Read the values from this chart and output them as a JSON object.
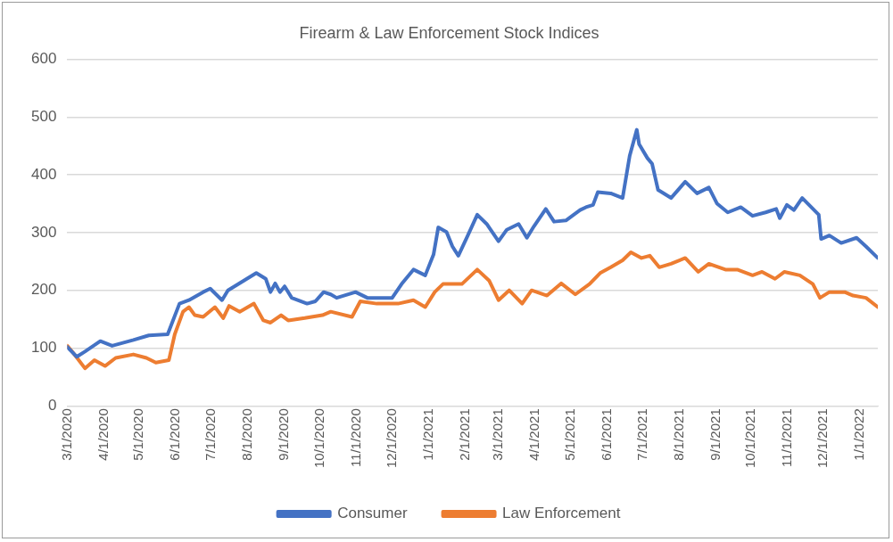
{
  "chart_data": {
    "type": "line",
    "title": "Firearm & Law Enforcement Stock Indices",
    "xlim": [
      "2020-03-01",
      "2022-01-16"
    ],
    "xticks": [
      {
        "value": "2020-03-01",
        "label": "3/1/2020"
      },
      {
        "value": "2020-04-01",
        "label": "4/1/2020"
      },
      {
        "value": "2020-05-01",
        "label": "5/1/2020"
      },
      {
        "value": "2020-06-01",
        "label": "6/1/2020"
      },
      {
        "value": "2020-07-01",
        "label": "7/1/2020"
      },
      {
        "value": "2020-08-01",
        "label": "8/1/2020"
      },
      {
        "value": "2020-09-01",
        "label": "9/1/2020"
      },
      {
        "value": "2020-10-01",
        "label": "10/1/2020"
      },
      {
        "value": "2020-11-01",
        "label": "11/1/2020"
      },
      {
        "value": "2020-12-01",
        "label": "12/1/2020"
      },
      {
        "value": "2021-01-01",
        "label": "1/1/2021"
      },
      {
        "value": "2021-02-01",
        "label": "2/1/2021"
      },
      {
        "value": "2021-03-01",
        "label": "3/1/2021"
      },
      {
        "value": "2021-04-01",
        "label": "4/1/2021"
      },
      {
        "value": "2021-05-01",
        "label": "5/1/2021"
      },
      {
        "value": "2021-06-01",
        "label": "6/1/2021"
      },
      {
        "value": "2021-07-01",
        "label": "7/1/2021"
      },
      {
        "value": "2021-08-01",
        "label": "8/1/2021"
      },
      {
        "value": "2021-09-01",
        "label": "9/1/2021"
      },
      {
        "value": "2021-10-01",
        "label": "10/1/2021"
      },
      {
        "value": "2021-11-01",
        "label": "11/1/2021"
      },
      {
        "value": "2021-12-01",
        "label": "12/1/2021"
      },
      {
        "value": "2022-01-01",
        "label": "1/1/2022"
      }
    ],
    "ylim": [
      0,
      600
    ],
    "yticks": [
      0,
      100,
      200,
      300,
      400,
      500,
      600
    ],
    "grid": "y",
    "legend": "bottom",
    "marker": "none",
    "line_style": "solid",
    "series": [
      {
        "name": "Consumer",
        "color": "#4472c4",
        "x": [
          "2020-03-01",
          "2020-03-09",
          "2020-03-16",
          "2020-03-29",
          "2020-04-08",
          "2020-04-26",
          "2020-05-09",
          "2020-05-25",
          "2020-06-04",
          "2020-06-12",
          "2020-06-24",
          "2020-06-30",
          "2020-07-10",
          "2020-07-15",
          "2020-07-31",
          "2020-08-08",
          "2020-08-16",
          "2020-08-20",
          "2020-08-24",
          "2020-08-28",
          "2020-09-01",
          "2020-09-07",
          "2020-09-20",
          "2020-09-27",
          "2020-10-04",
          "2020-10-10",
          "2020-10-15",
          "2020-10-31",
          "2020-11-10",
          "2020-12-01",
          "2020-12-09",
          "2020-12-19",
          "2020-12-29",
          "2021-01-05",
          "2021-01-09",
          "2021-01-16",
          "2021-01-21",
          "2021-01-26",
          "2021-02-03",
          "2021-02-11",
          "2021-02-19",
          "2021-03-01",
          "2021-03-08",
          "2021-03-18",
          "2021-03-25",
          "2021-03-31",
          "2021-04-10",
          "2021-04-17",
          "2021-04-27",
          "2021-05-09",
          "2021-05-14",
          "2021-05-20",
          "2021-05-24",
          "2021-06-04",
          "2021-06-14",
          "2021-06-20",
          "2021-06-26",
          "2021-06-28",
          "2021-07-05",
          "2021-07-09",
          "2021-07-14",
          "2021-07-25",
          "2021-08-06",
          "2021-08-16",
          "2021-08-26",
          "2021-09-02",
          "2021-09-11",
          "2021-09-22",
          "2021-10-02",
          "2021-10-13",
          "2021-10-22",
          "2021-10-25",
          "2021-10-31",
          "2021-11-06",
          "2021-11-13",
          "2021-11-27",
          "2021-11-29",
          "2021-12-06",
          "2021-12-16",
          "2021-12-29",
          "2022-01-06",
          "2022-01-16"
        ],
        "values": [
          102,
          85,
          94,
          112,
          104,
          114,
          122,
          124,
          177,
          183,
          197,
          203,
          183,
          200,
          220,
          230,
          220,
          197,
          212,
          197,
          207,
          187,
          177,
          181,
          197,
          193,
          187,
          197,
          187,
          187,
          211,
          236,
          226,
          262,
          309,
          301,
          276,
          260,
          295,
          331,
          315,
          285,
          305,
          315,
          291,
          311,
          341,
          319,
          321,
          339,
          344,
          348,
          370,
          368,
          360,
          433,
          478,
          453,
          429,
          419,
          374,
          360,
          388,
          368,
          378,
          350,
          335,
          344,
          329,
          335,
          341,
          325,
          348,
          339,
          360,
          331,
          289,
          295,
          282,
          291,
          276,
          256
        ]
      },
      {
        "name": "Law Enforcement",
        "color": "#ed7d31",
        "x": [
          "2020-03-01",
          "2020-03-06",
          "2020-03-16",
          "2020-03-24",
          "2020-04-02",
          "2020-04-11",
          "2020-04-26",
          "2020-05-07",
          "2020-05-15",
          "2020-05-26",
          "2020-05-31",
          "2020-06-07",
          "2020-06-12",
          "2020-06-17",
          "2020-06-24",
          "2020-07-04",
          "2020-07-11",
          "2020-07-16",
          "2020-07-25",
          "2020-08-06",
          "2020-08-14",
          "2020-08-20",
          "2020-08-29",
          "2020-09-04",
          "2020-09-18",
          "2020-10-03",
          "2020-10-10",
          "2020-10-28",
          "2020-11-04",
          "2020-11-18",
          "2020-12-06",
          "2020-12-19",
          "2020-12-29",
          "2021-01-06",
          "2021-01-13",
          "2021-01-29",
          "2021-02-11",
          "2021-02-21",
          "2021-03-01",
          "2021-03-10",
          "2021-03-21",
          "2021-03-29",
          "2021-04-11",
          "2021-04-23",
          "2021-05-05",
          "2021-05-17",
          "2021-05-26",
          "2021-06-04",
          "2021-06-14",
          "2021-06-21",
          "2021-06-30",
          "2021-07-07",
          "2021-07-15",
          "2021-07-25",
          "2021-08-06",
          "2021-08-17",
          "2021-08-26",
          "2021-09-09",
          "2021-09-19",
          "2021-10-02",
          "2021-10-10",
          "2021-10-21",
          "2021-10-29",
          "2021-11-11",
          "2021-11-22",
          "2021-11-28",
          "2021-12-06",
          "2021-12-19",
          "2021-12-26",
          "2022-01-06",
          "2022-01-16"
        ],
        "values": [
          104,
          92,
          65,
          79,
          69,
          83,
          89,
          83,
          75,
          79,
          124,
          163,
          171,
          157,
          154,
          171,
          152,
          173,
          163,
          177,
          148,
          144,
          157,
          148,
          152,
          157,
          163,
          154,
          181,
          177,
          177,
          183,
          171,
          197,
          211,
          211,
          236,
          217,
          183,
          200,
          177,
          200,
          191,
          212,
          193,
          211,
          230,
          240,
          252,
          266,
          256,
          260,
          240,
          246,
          256,
          232,
          246,
          236,
          236,
          226,
          232,
          220,
          232,
          226,
          211,
          187,
          197,
          197,
          191,
          187,
          171
        ]
      }
    ]
  }
}
